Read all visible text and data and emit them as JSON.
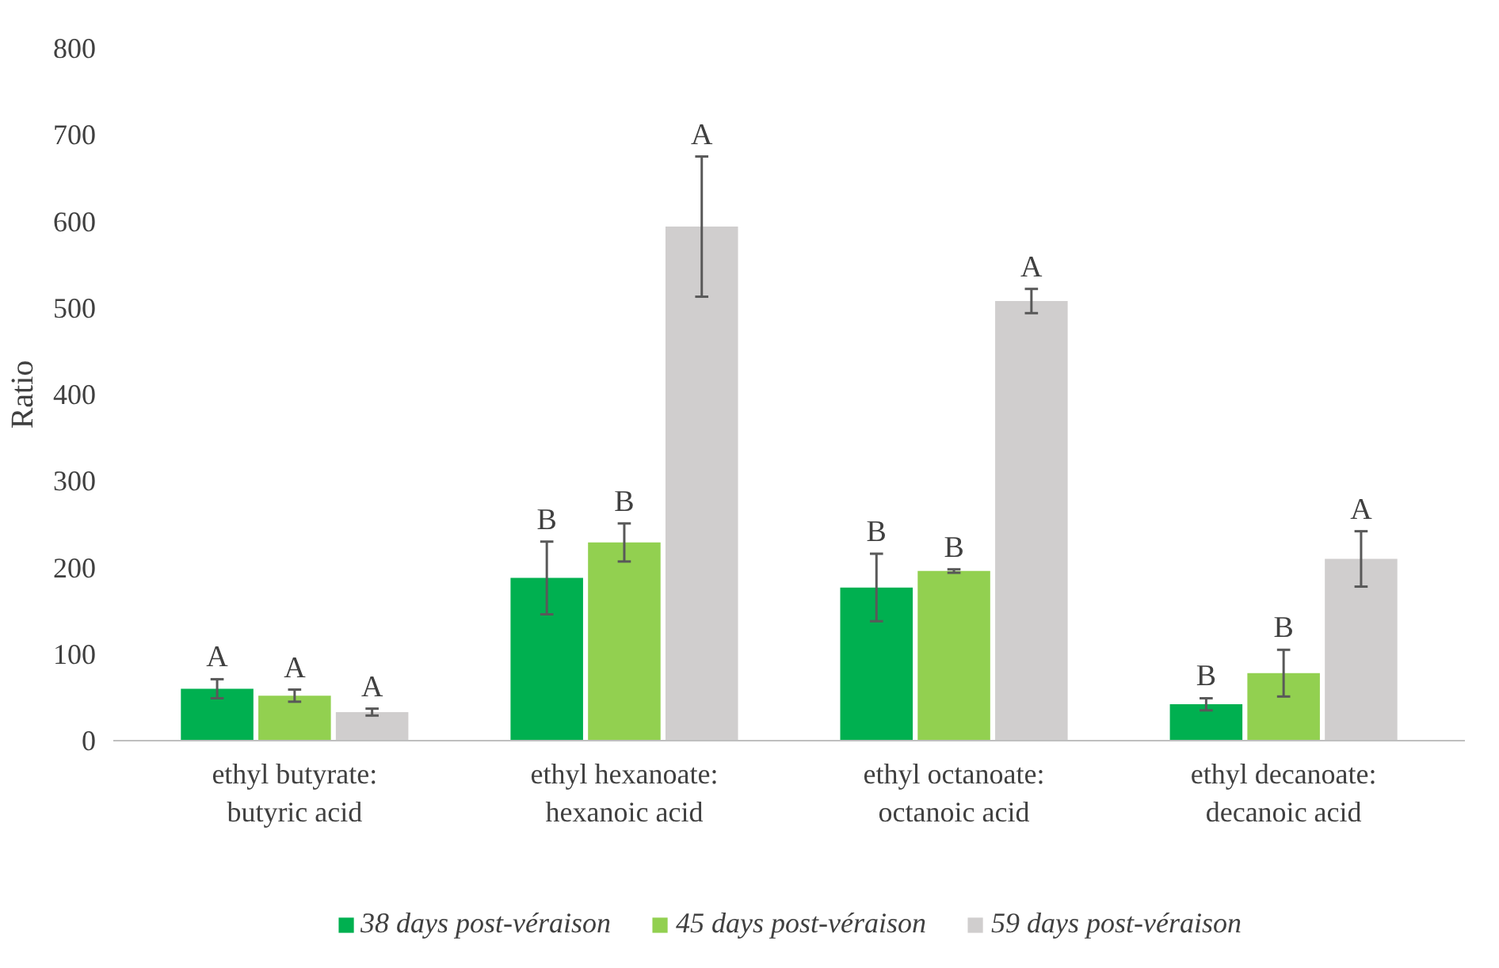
{
  "chart_data": {
    "type": "bar",
    "ylabel": "Ratio",
    "categories": [
      "ethyl butyrate:\nbutyric acid",
      "ethyl hexanoate:\nhexanoic acid",
      "ethyl octanoate:\noctanoic acid",
      "ethyl decanoate:\ndecanoic acid"
    ],
    "series": [
      {
        "name": "38 days post-véraison",
        "color": "#00b050",
        "values": [
          60,
          188,
          177,
          42
        ],
        "errors": [
          11,
          42,
          39,
          7
        ],
        "value_labels": [
          "A",
          "B",
          "B",
          "B"
        ]
      },
      {
        "name": "45 days post-véraison",
        "color": "#92d050",
        "values": [
          52,
          229,
          196,
          78
        ],
        "errors": [
          7,
          22,
          2,
          27
        ],
        "value_labels": [
          "A",
          "B",
          "B",
          "B"
        ]
      },
      {
        "name": "59 days post-véraison",
        "color": "#d0cece",
        "values": [
          33,
          594,
          508,
          210
        ],
        "errors": [
          4,
          81,
          14,
          32
        ],
        "value_labels": [
          "A",
          "A",
          "A",
          "A"
        ]
      }
    ],
    "ylim": [
      0,
      800
    ],
    "yticks": [
      0,
      100,
      200,
      300,
      400,
      500,
      600,
      700,
      800
    ],
    "grid": false,
    "legend": "bottom"
  }
}
